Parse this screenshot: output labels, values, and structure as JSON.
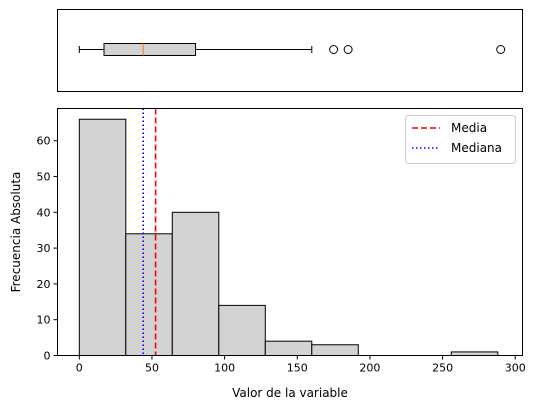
{
  "chart_data": [
    {
      "type": "boxplot",
      "orientation": "horizontal",
      "whisker_low": 0,
      "q1": 17,
      "median": 44,
      "q3": 80,
      "whisker_high": 160,
      "outliers": [
        175,
        185,
        290
      ],
      "xlim": [
        -15,
        305
      ],
      "box_color": "#d3d3d3",
      "median_color": "#ff7f0e"
    },
    {
      "type": "histogram",
      "bins": [
        {
          "start": 0,
          "end": 32,
          "count": 66
        },
        {
          "start": 32,
          "end": 64,
          "count": 34
        },
        {
          "start": 64,
          "end": 96,
          "count": 40
        },
        {
          "start": 96,
          "end": 128,
          "count": 14
        },
        {
          "start": 128,
          "end": 160,
          "count": 4
        },
        {
          "start": 160,
          "end": 192,
          "count": 3
        },
        {
          "start": 192,
          "end": 224,
          "count": 0
        },
        {
          "start": 224,
          "end": 256,
          "count": 0
        },
        {
          "start": 256,
          "end": 288,
          "count": 1
        }
      ],
      "bar_color": "#d3d3d3",
      "xlim": [
        -15,
        305
      ],
      "ylim": [
        0,
        69
      ],
      "xticks": [
        0,
        50,
        100,
        150,
        200,
        250,
        300
      ],
      "yticks": [
        0,
        10,
        20,
        30,
        40,
        50,
        60
      ],
      "xlabel": "Valor de la variable",
      "ylabel": "Frecuencia Absoluta",
      "reference_lines": [
        {
          "label": "Media",
          "value": 52.5,
          "color": "#ff0000",
          "style": "dashed"
        },
        {
          "label": "Mediana",
          "value": 44,
          "color": "#0000ff",
          "style": "dotted"
        }
      ],
      "legend_position": "upper right"
    }
  ]
}
